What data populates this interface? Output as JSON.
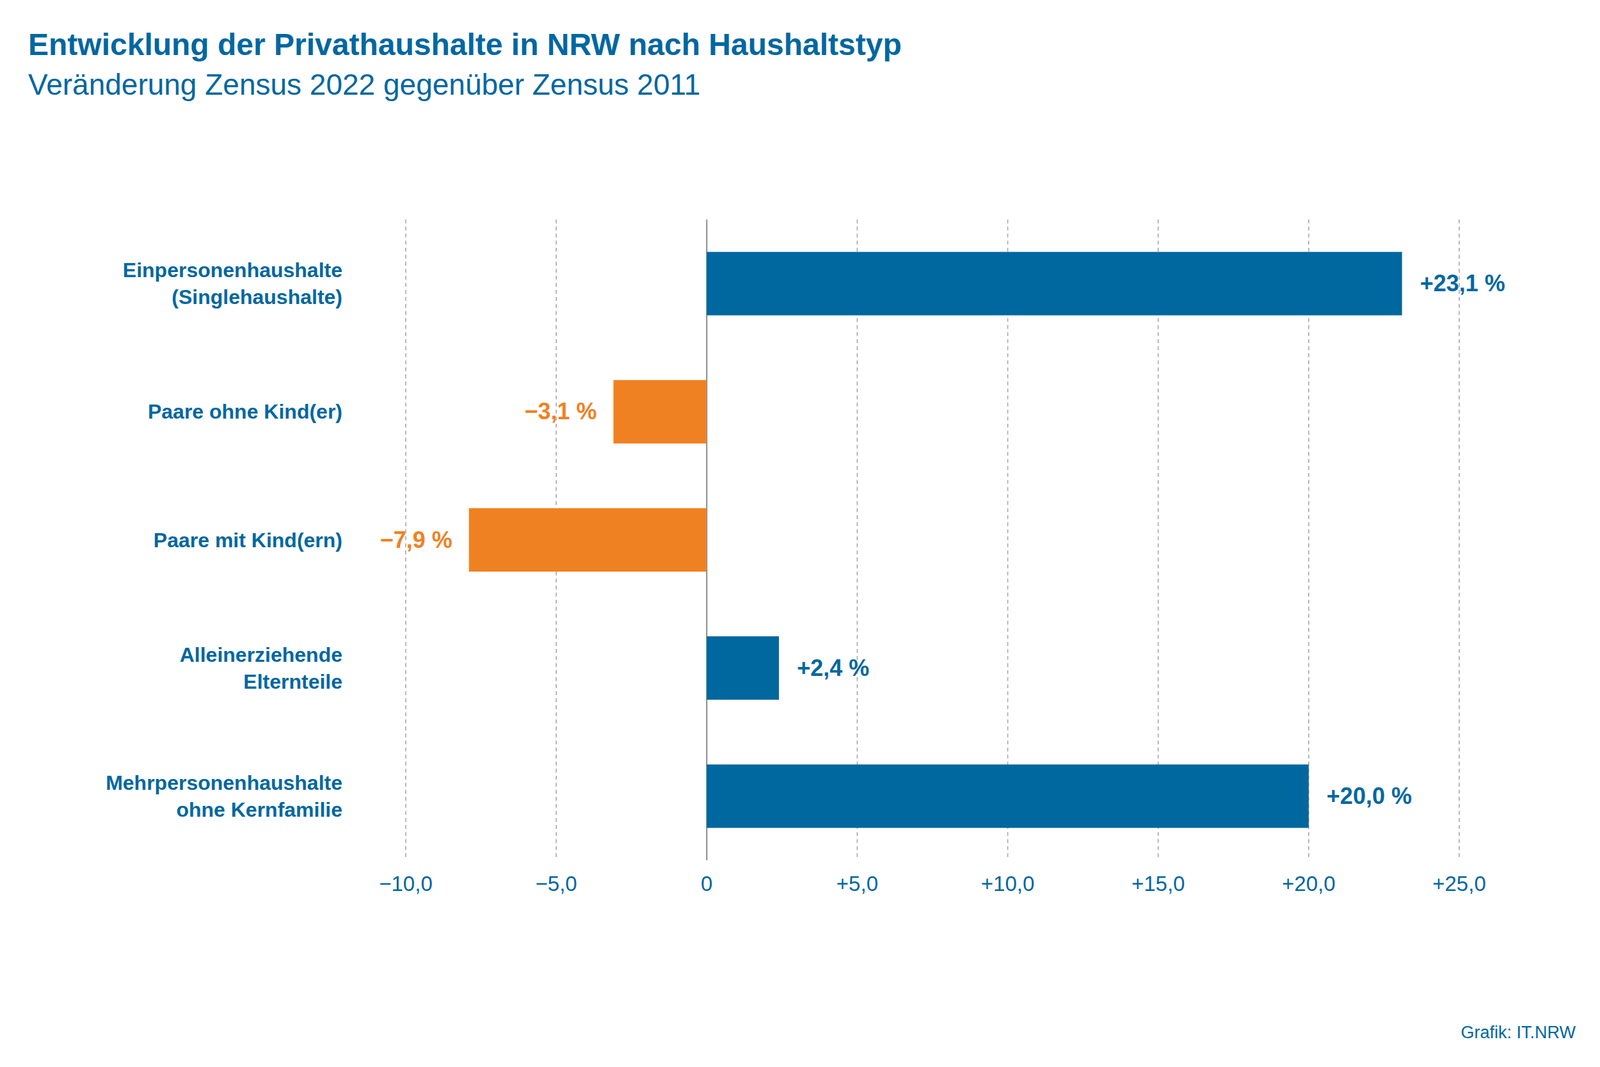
{
  "chart_data": {
    "type": "bar",
    "orientation": "horizontal",
    "title": "Entwicklung der Privathaushalte in NRW nach Haushaltstyp",
    "subtitle": "Veränderung Zensus 2022 gegenüber Zensus 2011",
    "source": "Grafik: IT.NRW",
    "categories": [
      "Einpersonenhaushalte\n(Singlehaushalte)",
      "Paare ohne Kind(er)",
      "Paare mit Kind(ern)",
      "Alleinerziehende\nElternteile",
      "Mehrpersonenhaushalte\nohne Kernfamilie"
    ],
    "values": [
      23.1,
      -3.1,
      -7.9,
      2.4,
      20.0
    ],
    "value_labels": [
      "+23,1 %",
      "−3,1 %",
      "−7,9 %",
      "+2,4 %",
      "+20,0 %"
    ],
    "colors": [
      "#00679f",
      "#f08122",
      "#f08122",
      "#00679f",
      "#00679f"
    ],
    "xlim": [
      -10,
      25
    ],
    "xticks": [
      {
        "value": -10,
        "label": "−10,0"
      },
      {
        "value": -5,
        "label": "−5,0"
      },
      0,
      {
        "value": 5,
        "label": "+5,0"
      },
      {
        "value": 10,
        "label": "+10,0"
      },
      {
        "value": 15,
        "label": "+15,0"
      },
      {
        "value": 20,
        "label": "+20,0"
      },
      {
        "value": 25,
        "label": "+25,0"
      }
    ],
    "grid": true,
    "data_labels": true
  }
}
